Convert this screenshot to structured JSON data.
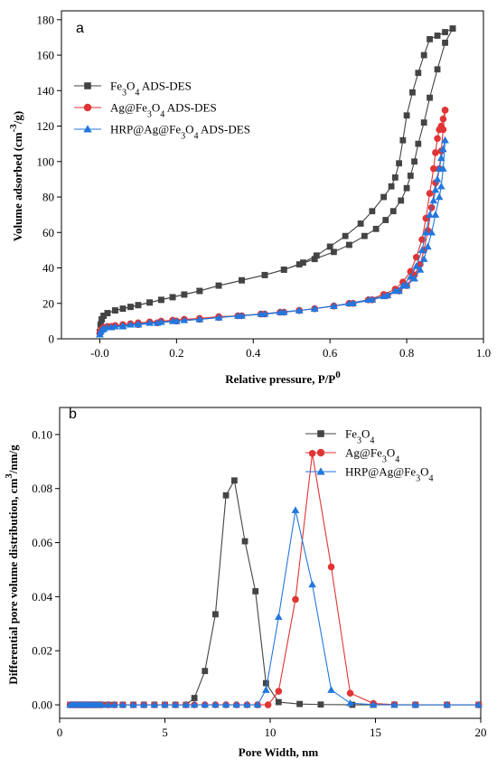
{
  "chart_data": [
    {
      "panel": "a",
      "type": "line",
      "xlabel": "Relative pressure, P/P",
      "xlabel_sup": "0",
      "ylabel": "Volume adsorbed (cm",
      "ylabel_sup": "-3",
      "ylabel_end": "/g)",
      "xlim": [
        -0.1,
        1.0
      ],
      "ylim": [
        0,
        185
      ],
      "xticks": [
        "-0.0",
        "0.2",
        "0.4",
        "0.6",
        "0.8",
        "1.0"
      ],
      "xtick_values": [
        0,
        0.2,
        0.4,
        0.6,
        0.8,
        1.0
      ],
      "yticks": [
        "0",
        "20",
        "40",
        "60",
        "80",
        "100",
        "120",
        "140",
        "160",
        "180"
      ],
      "ytick_values": [
        0,
        20,
        40,
        60,
        80,
        100,
        120,
        140,
        160,
        180
      ],
      "legend_placement": "upper-left",
      "series": [
        {
          "name": "Fe3O4 ADS-DES",
          "legend": [
            "Fe",
            "3",
            "O",
            "4",
            " ADS-DES"
          ],
          "color": "#444444",
          "marker": "square",
          "branches": [
            {
              "x": [
                0.0,
                0.002,
                0.005,
                0.01,
                0.02,
                0.04,
                0.06,
                0.08,
                0.1,
                0.13,
                0.16,
                0.19,
                0.22,
                0.26,
                0.31,
                0.37,
                0.43,
                0.48,
                0.52,
                0.56,
                0.61,
                0.65,
                0.69,
                0.72,
                0.745,
                0.765,
                0.785,
                0.8,
                0.81,
                0.82,
                0.83,
                0.845,
                0.86,
                0.88,
                0.9,
                0.92
              ],
              "y": [
                4,
                8,
                11,
                13,
                14.5,
                16,
                17,
                18,
                19,
                20.5,
                22,
                23.5,
                25,
                27,
                30,
                33,
                36,
                39,
                42,
                45,
                49,
                53,
                58,
                62,
                67,
                72,
                78,
                85,
                92,
                100,
                110,
                122,
                136,
                152,
                167,
                175
              ]
            },
            {
              "x": [
                0.92,
                0.9,
                0.88,
                0.86,
                0.845,
                0.83,
                0.815,
                0.8,
                0.79,
                0.78,
                0.77,
                0.76,
                0.74,
                0.71,
                0.68,
                0.64,
                0.6,
                0.565,
                0.53,
                0.48,
                0.43,
                0.37,
                0.31,
                0.26,
                0.22,
                0.19,
                0.16,
                0.13,
                0.1,
                0.08,
                0.06,
                0.04,
                0.02,
                0.01,
                0.005,
                0.002,
                0.0
              ],
              "y": [
                175,
                173,
                171,
                169,
                160,
                150,
                139,
                126,
                112,
                99,
                91,
                86,
                80,
                72,
                65,
                58,
                52,
                47,
                43,
                39,
                36,
                33,
                30,
                27,
                25,
                23.5,
                22,
                20.5,
                19,
                18,
                17,
                16,
                14.5,
                13,
                11,
                8,
                4
              ]
            }
          ]
        },
        {
          "name": "Ag@Fe3O4 ADS-DES",
          "legend": [
            "Ag@Fe",
            "3",
            "O",
            "4",
            " ADS-DES"
          ],
          "color": "#e03535",
          "marker": "circle",
          "branches": [
            {
              "x": [
                0.0,
                0.002,
                0.005,
                0.01,
                0.02,
                0.04,
                0.06,
                0.08,
                0.1,
                0.13,
                0.16,
                0.19,
                0.22,
                0.26,
                0.31,
                0.37,
                0.43,
                0.48,
                0.52,
                0.56,
                0.61,
                0.65,
                0.7,
                0.74,
                0.77,
                0.79,
                0.81,
                0.825,
                0.84,
                0.85,
                0.86,
                0.87,
                0.875,
                0.88,
                0.885,
                0.89,
                0.895,
                0.9
              ],
              "y": [
                3,
                4.5,
                5.5,
                6.5,
                7,
                7.5,
                8,
                8.5,
                9,
                9.5,
                10,
                10.5,
                11,
                11.5,
                12.5,
                13,
                14,
                15,
                16,
                17,
                18.5,
                20,
                22,
                25,
                28,
                32,
                38,
                46,
                56,
                68,
                82,
                96,
                105,
                113,
                118,
                120,
                124,
                129
              ]
            },
            {
              "x": [
                0.9,
                0.895,
                0.89,
                0.885,
                0.875,
                0.865,
                0.855,
                0.845,
                0.835,
                0.82,
                0.8,
                0.78,
                0.75,
                0.71,
                0.66,
                0.61,
                0.56,
                0.52,
                0.47,
                0.42,
                0.36,
                0.31,
                0.26,
                0.2,
                0.15,
                0.1,
                0.06,
                0.03,
                0.01,
                0.0
              ],
              "y": [
                129,
                118,
                106,
                96,
                88,
                74,
                61,
                50,
                42,
                36,
                30,
                27,
                24.5,
                22,
                20,
                18.5,
                17,
                16,
                15,
                14,
                13,
                12,
                11,
                10,
                9,
                8,
                7.5,
                7,
                6,
                3
              ]
            }
          ]
        },
        {
          "name": "HRP@Ag@Fe3O4 ADS-DES",
          "legend": [
            "HRP@Ag@Fe",
            "3",
            "O",
            "4",
            " ADS-DES"
          ],
          "color": "#2277dd",
          "marker": "triangle",
          "branches": [
            {
              "x": [
                0.0,
                0.002,
                0.005,
                0.01,
                0.02,
                0.04,
                0.06,
                0.08,
                0.1,
                0.13,
                0.16,
                0.19,
                0.22,
                0.26,
                0.31,
                0.37,
                0.43,
                0.48,
                0.52,
                0.56,
                0.61,
                0.65,
                0.7,
                0.74,
                0.77,
                0.79,
                0.81,
                0.825,
                0.84,
                0.85,
                0.86,
                0.87,
                0.875,
                0.88,
                0.885,
                0.89,
                0.895,
                0.9
              ],
              "y": [
                2.5,
                4,
                5,
                6,
                6.5,
                7,
                7.5,
                8,
                8.5,
                9,
                9.5,
                10,
                10.5,
                11,
                12,
                13,
                14,
                15,
                16,
                17,
                18.5,
                20,
                22,
                24,
                27,
                30,
                35,
                41,
                50,
                60,
                70,
                78,
                84,
                90,
                96,
                102,
                107,
                112
              ]
            },
            {
              "x": [
                0.9,
                0.895,
                0.89,
                0.885,
                0.875,
                0.865,
                0.855,
                0.845,
                0.835,
                0.82,
                0.8,
                0.78,
                0.75,
                0.71,
                0.66,
                0.61,
                0.56,
                0.52,
                0.47,
                0.42,
                0.36,
                0.31,
                0.26,
                0.2,
                0.15,
                0.1,
                0.06,
                0.03,
                0.01,
                0.0
              ],
              "y": [
                112,
                96,
                86,
                80,
                70,
                60,
                52,
                45,
                39,
                34,
                30,
                27,
                24.5,
                22,
                20,
                18.5,
                17,
                16,
                15,
                14,
                13,
                12,
                11,
                10,
                9,
                8,
                7,
                6.5,
                5.5,
                2.5
              ]
            }
          ]
        }
      ]
    },
    {
      "panel": "b",
      "type": "line",
      "xlabel": "Pore Width, nm",
      "ylabel": "Differential pore volume distribution, cm",
      "ylabel_sup": "3",
      "ylabel_end": "/nm/g",
      "xlim": [
        0,
        20
      ],
      "ylim": [
        -0.005,
        0.11
      ],
      "xticks": [
        "0",
        "5",
        "10",
        "15",
        "20"
      ],
      "xtick_values": [
        0,
        5,
        10,
        15,
        20
      ],
      "yticks": [
        "0.00",
        "0.02",
        "0.04",
        "0.06",
        "0.08",
        "0.10"
      ],
      "ytick_values": [
        0,
        0.02,
        0.04,
        0.06,
        0.08,
        0.1
      ],
      "legend_placement": "upper-right",
      "series": [
        {
          "name": "Fe3O4",
          "legend": [
            "Fe",
            "3",
            "O",
            "4",
            ""
          ],
          "color": "#444444",
          "marker": "square",
          "x": [
            0.5,
            0.6,
            0.7,
            0.8,
            0.9,
            1.0,
            1.1,
            1.2,
            1.3,
            1.4,
            1.5,
            1.6,
            1.7,
            1.8,
            1.9,
            2.0,
            2.3,
            2.6,
            3.0,
            3.5,
            4.0,
            4.5,
            5.0,
            5.5,
            6.0,
            6.4,
            6.9,
            7.4,
            7.9,
            8.3,
            8.8,
            9.3,
            9.8,
            10.4,
            11.4,
            12.4,
            13.9,
            14.9,
            15.9,
            16.9,
            18.4,
            19.9
          ],
          "y": [
            0,
            0,
            0,
            0,
            0,
            0,
            0,
            0,
            0,
            0,
            0,
            0,
            0,
            0,
            0,
            0,
            0,
            0,
            0,
            0,
            0,
            0,
            0,
            0,
            0,
            0.0025,
            0.0125,
            0.0335,
            0.0775,
            0.083,
            0.0605,
            0.042,
            0.008,
            0.001,
            0.0003,
            0.0001,
            0,
            0,
            0,
            0,
            0,
            0
          ]
        },
        {
          "name": "Ag@Fe3O4",
          "legend": [
            "Ag@Fe",
            "3",
            "O",
            "4",
            ""
          ],
          "color": "#e03535",
          "marker": "circle",
          "x": [
            0.5,
            0.6,
            0.7,
            0.8,
            0.9,
            1.0,
            1.1,
            1.2,
            1.3,
            1.4,
            1.5,
            1.6,
            1.7,
            1.8,
            1.9,
            2.0,
            2.3,
            2.6,
            3.0,
            3.5,
            4.0,
            4.5,
            5.0,
            5.5,
            6.0,
            6.4,
            6.9,
            7.4,
            7.9,
            8.4,
            8.9,
            9.4,
            9.9,
            10.4,
            11.2,
            12.0,
            12.9,
            13.8,
            14.9,
            15.9,
            16.9,
            18.4,
            19.9
          ],
          "y": [
            0,
            0,
            0,
            0,
            0,
            0,
            0,
            0,
            0,
            0,
            0,
            0,
            0,
            0,
            0,
            0,
            0,
            0,
            0,
            0,
            0,
            0,
            0,
            0,
            0,
            0,
            0,
            0,
            0,
            0,
            0,
            0,
            0,
            0.005,
            0.039,
            0.093,
            0.051,
            0.0043,
            0.0005,
            0.0001,
            0,
            0,
            0
          ]
        },
        {
          "name": "HRP@Ag@Fe3O4",
          "legend": [
            "HRP@Ag@Fe",
            "3",
            "O",
            "4",
            ""
          ],
          "color": "#2277dd",
          "marker": "triangle",
          "x": [
            0.5,
            0.6,
            0.7,
            0.8,
            0.9,
            1.0,
            1.1,
            1.2,
            1.3,
            1.4,
            1.5,
            1.6,
            1.7,
            1.8,
            1.9,
            2.0,
            2.3,
            2.6,
            3.0,
            3.5,
            4.0,
            4.5,
            5.0,
            5.5,
            6.0,
            6.4,
            6.9,
            7.4,
            7.9,
            8.4,
            8.9,
            9.4,
            9.8,
            10.4,
            11.2,
            12.0,
            12.9,
            13.8,
            14.9,
            15.9,
            16.9,
            18.4,
            19.9
          ],
          "y": [
            0,
            0,
            0,
            0,
            0,
            0,
            0,
            0,
            0,
            0,
            0,
            0,
            0,
            0,
            0,
            0,
            0,
            0,
            0,
            0,
            0,
            0,
            0,
            0,
            0,
            0,
            0,
            0,
            0,
            0,
            0,
            0,
            0.0055,
            0.0325,
            0.072,
            0.0445,
            0.0055,
            0.0006,
            0.0001,
            0,
            0,
            0,
            0
          ]
        }
      ]
    }
  ]
}
